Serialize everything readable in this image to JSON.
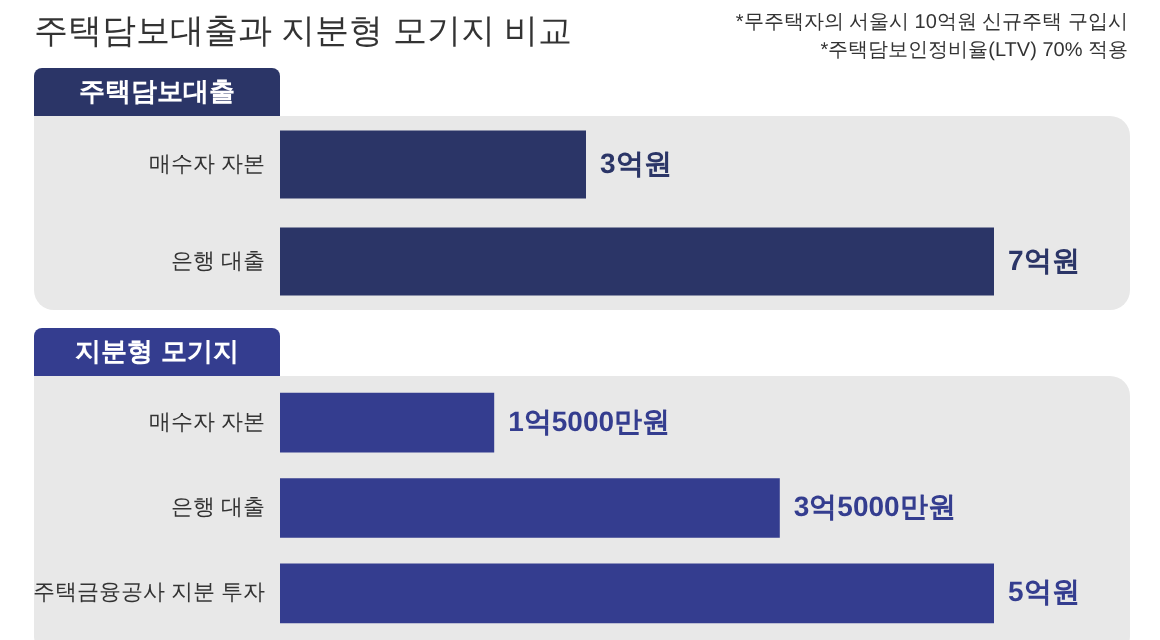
{
  "chart_data": [
    {
      "type": "bar",
      "orientation": "horizontal",
      "title": "주택담보대출과 지분형 모기지 비교",
      "subtitle": "주택담보대출",
      "annotations": [
        "*무주택자의 서울시 10억원 신규주택 구입시",
        "*주택담보인정비율(LTV) 70% 적용"
      ],
      "categories": [
        "매수자 자본",
        "은행 대출"
      ],
      "values": [
        3,
        7
      ],
      "value_labels": [
        "3억원",
        "7억원"
      ],
      "color": "#2b3567",
      "tick_labels": "y"
    },
    {
      "type": "bar",
      "orientation": "horizontal",
      "subtitle": "지분형 모기지",
      "categories": [
        "매수자 자본",
        "은행 대출",
        "주택금융공사 지분 투자"
      ],
      "values": [
        1.5,
        3.5,
        5
      ],
      "value_labels": [
        "1억5000만원",
        "3억5000만원",
        "5억원"
      ],
      "color": "#343d8f",
      "tick_labels": "y"
    }
  ]
}
